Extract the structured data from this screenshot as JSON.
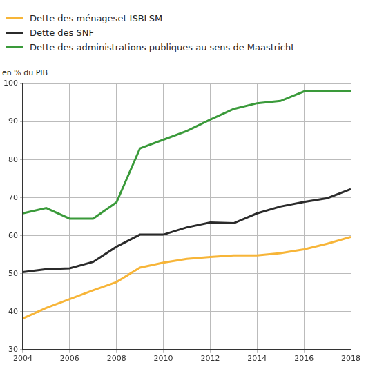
{
  "chart_data": {
    "type": "line",
    "ylabel": "en % du PIB",
    "x": [
      2004,
      2005,
      2006,
      2007,
      2008,
      2009,
      2010,
      2011,
      2012,
      2013,
      2014,
      2015,
      2016,
      2017,
      2018
    ],
    "series": [
      {
        "name": "Dette des ménageset ISBLSM",
        "color": "#f7b538",
        "values": [
          38.2,
          41.0,
          43.3,
          45.6,
          47.8,
          51.6,
          52.9,
          53.9,
          54.4,
          54.8,
          54.8,
          55.4,
          56.4,
          57.9,
          59.7
        ]
      },
      {
        "name": "Dette des SNF",
        "color": "#2b2b2b",
        "values": [
          50.4,
          51.2,
          51.4,
          53.1,
          57.1,
          60.3,
          60.3,
          62.2,
          63.5,
          63.3,
          65.9,
          67.7,
          68.9,
          69.9,
          72.3
        ]
      },
      {
        "name": "Dette des administrations publiques au sens de Maastricht",
        "color": "#3a9a3a",
        "values": [
          65.9,
          67.3,
          64.5,
          64.5,
          68.8,
          83.0,
          85.3,
          87.6,
          90.6,
          93.4,
          94.9,
          95.5,
          98.0,
          98.2,
          98.2
        ]
      }
    ],
    "xlim": [
      2004,
      2018
    ],
    "xticks": [
      2004,
      2006,
      2008,
      2010,
      2012,
      2014,
      2016,
      2018
    ],
    "ylim": [
      30,
      100
    ],
    "yticks": [
      30,
      40,
      50,
      60,
      70,
      80,
      90,
      100
    ],
    "grid": true,
    "legend": "top-left"
  }
}
